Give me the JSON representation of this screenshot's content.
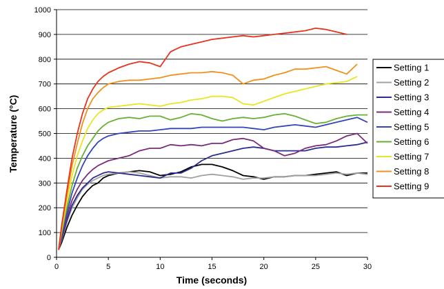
{
  "chart_data": {
    "type": "line",
    "xlabel": "Time (seconds)",
    "ylabel": "Temperature (°C)",
    "xlim": [
      0,
      30
    ],
    "ylim": [
      0,
      1000
    ],
    "x_ticks": [
      "0",
      "5",
      "10",
      "15",
      "20",
      "25",
      "30"
    ],
    "y_ticks": [
      "0",
      "100",
      "200",
      "300",
      "400",
      "500",
      "600",
      "700",
      "800",
      "900",
      "1000"
    ],
    "grid": "horizontal",
    "legend_position": "right",
    "series": [
      {
        "name": "Setting 1",
        "color": "#000000",
        "x": [
          0.2,
          0.5,
          1,
          1.5,
          2,
          2.5,
          3,
          3.5,
          4,
          4.5,
          5,
          6,
          7,
          8,
          9,
          10,
          11,
          12,
          13,
          14,
          15,
          16,
          17,
          18,
          19,
          20,
          21,
          22,
          23,
          24,
          25,
          26,
          27,
          28,
          29,
          30
        ],
        "y": [
          30,
          60,
          120,
          170,
          210,
          245,
          270,
          290,
          300,
          320,
          330,
          340,
          345,
          350,
          345,
          330,
          335,
          345,
          365,
          375,
          375,
          365,
          350,
          330,
          325,
          315,
          325,
          325,
          330,
          330,
          335,
          340,
          345,
          330,
          340,
          340
        ]
      },
      {
        "name": "Setting 2",
        "color": "#a0a0a0",
        "x": [
          0.2,
          0.5,
          1,
          1.5,
          2,
          2.5,
          3,
          3.5,
          4,
          4.5,
          5,
          6,
          7,
          8,
          9,
          10,
          11,
          12,
          13,
          14,
          15,
          16,
          17,
          18,
          19,
          20,
          21,
          22,
          23,
          24,
          25,
          26,
          27,
          28,
          29,
          30
        ],
        "y": [
          30,
          70,
          140,
          200,
          240,
          275,
          295,
          310,
          320,
          330,
          335,
          340,
          345,
          340,
          330,
          320,
          325,
          325,
          320,
          330,
          335,
          330,
          325,
          315,
          320,
          320,
          325,
          325,
          330,
          330,
          330,
          335,
          340,
          335,
          340,
          335
        ]
      },
      {
        "name": "Setting 3",
        "color": "#2b2b8f",
        "x": [
          0.2,
          0.5,
          1,
          1.5,
          2,
          2.5,
          3,
          3.5,
          4,
          4.5,
          5,
          6,
          7,
          8,
          9,
          10,
          11,
          12,
          13,
          14,
          15,
          16,
          17,
          18,
          19,
          20,
          21,
          22,
          23,
          24,
          25,
          26,
          27,
          28,
          29,
          30
        ],
        "y": [
          30,
          75,
          150,
          210,
          250,
          280,
          300,
          320,
          330,
          340,
          345,
          340,
          335,
          330,
          325,
          320,
          340,
          340,
          360,
          390,
          410,
          420,
          430,
          440,
          445,
          440,
          430,
          430,
          430,
          430,
          440,
          445,
          445,
          450,
          455,
          465
        ]
      },
      {
        "name": "Setting 4",
        "color": "#7a2a7a",
        "x": [
          0.2,
          0.5,
          1,
          1.5,
          2,
          2.5,
          3,
          3.5,
          4,
          4.5,
          5,
          6,
          7,
          8,
          9,
          10,
          11,
          12,
          13,
          14,
          15,
          16,
          17,
          18,
          19,
          20,
          21,
          22,
          23,
          24,
          25,
          26,
          27,
          28,
          29,
          30
        ],
        "y": [
          30,
          80,
          165,
          230,
          275,
          310,
          335,
          355,
          370,
          380,
          390,
          400,
          410,
          430,
          440,
          440,
          455,
          450,
          455,
          450,
          460,
          460,
          475,
          480,
          470,
          440,
          430,
          410,
          420,
          440,
          450,
          455,
          470,
          490,
          500,
          460
        ]
      },
      {
        "name": "Setting 5",
        "color": "#3344bb",
        "x": [
          0.2,
          0.5,
          1,
          1.5,
          2,
          2.5,
          3,
          3.5,
          4,
          4.5,
          5,
          6,
          7,
          8,
          9,
          10,
          11,
          12,
          13,
          14,
          15,
          16,
          17,
          18,
          19,
          20,
          21,
          22,
          23,
          24,
          25,
          26,
          27,
          28,
          29,
          30
        ],
        "y": [
          30,
          90,
          180,
          260,
          320,
          370,
          410,
          440,
          465,
          480,
          490,
          500,
          505,
          510,
          510,
          515,
          520,
          520,
          520,
          525,
          525,
          525,
          525,
          525,
          520,
          515,
          525,
          530,
          535,
          530,
          525,
          535,
          545,
          555,
          565,
          545
        ]
      },
      {
        "name": "Setting 6",
        "color": "#66b033",
        "x": [
          0.2,
          0.5,
          1,
          1.5,
          2,
          2.5,
          3,
          3.5,
          4,
          4.5,
          5,
          6,
          7,
          8,
          9,
          10,
          11,
          12,
          13,
          14,
          15,
          16,
          17,
          18,
          19,
          20,
          21,
          22,
          23,
          24,
          25,
          26,
          27,
          28,
          29,
          30
        ],
        "y": [
          30,
          100,
          200,
          290,
          360,
          410,
          450,
          480,
          510,
          530,
          545,
          560,
          565,
          560,
          570,
          570,
          555,
          565,
          580,
          575,
          560,
          550,
          560,
          565,
          560,
          565,
          575,
          580,
          570,
          555,
          540,
          545,
          560,
          570,
          575,
          575
        ]
      },
      {
        "name": "Setting 7",
        "color": "#e6e622",
        "x": [
          0.2,
          0.5,
          1,
          1.5,
          2,
          2.5,
          3,
          3.5,
          4,
          4.5,
          5,
          6,
          7,
          8,
          9,
          10,
          11,
          12,
          13,
          14,
          15,
          16,
          17,
          18,
          19,
          20,
          21,
          22,
          23,
          24,
          25,
          26,
          27,
          28,
          29
        ],
        "y": [
          30,
          110,
          225,
          330,
          410,
          470,
          520,
          555,
          580,
          595,
          605,
          610,
          615,
          620,
          615,
          610,
          620,
          625,
          635,
          640,
          650,
          650,
          645,
          620,
          615,
          630,
          645,
          660,
          670,
          680,
          690,
          700,
          705,
          710,
          730
        ]
      },
      {
        "name": "Setting 8",
        "color": "#f0901e",
        "x": [
          0.2,
          0.5,
          1,
          1.5,
          2,
          2.5,
          3,
          3.5,
          4,
          4.5,
          5,
          6,
          7,
          8,
          9,
          10,
          11,
          12,
          13,
          14,
          15,
          16,
          17,
          18,
          19,
          20,
          21,
          22,
          23,
          24,
          25,
          26,
          27,
          28,
          29
        ],
        "y": [
          30,
          120,
          250,
          370,
          460,
          540,
          600,
          640,
          665,
          685,
          700,
          710,
          715,
          715,
          720,
          725,
          735,
          740,
          745,
          745,
          750,
          745,
          735,
          700,
          715,
          720,
          735,
          745,
          760,
          760,
          765,
          770,
          755,
          740,
          780
        ]
      },
      {
        "name": "Setting 9",
        "color": "#e8321e",
        "x": [
          0.2,
          0.5,
          1,
          1.5,
          2,
          2.5,
          3,
          3.5,
          4,
          4.5,
          5,
          6,
          7,
          8,
          9,
          10,
          11,
          12,
          13,
          14,
          15,
          16,
          17,
          18,
          19,
          20,
          21,
          22,
          23,
          24,
          25,
          26,
          27,
          28
        ],
        "y": [
          30,
          130,
          270,
          400,
          500,
          580,
          640,
          680,
          710,
          730,
          745,
          765,
          780,
          790,
          785,
          770,
          830,
          850,
          860,
          870,
          880,
          885,
          890,
          895,
          890,
          895,
          900,
          905,
          910,
          915,
          925,
          920,
          910,
          900
        ]
      }
    ]
  }
}
